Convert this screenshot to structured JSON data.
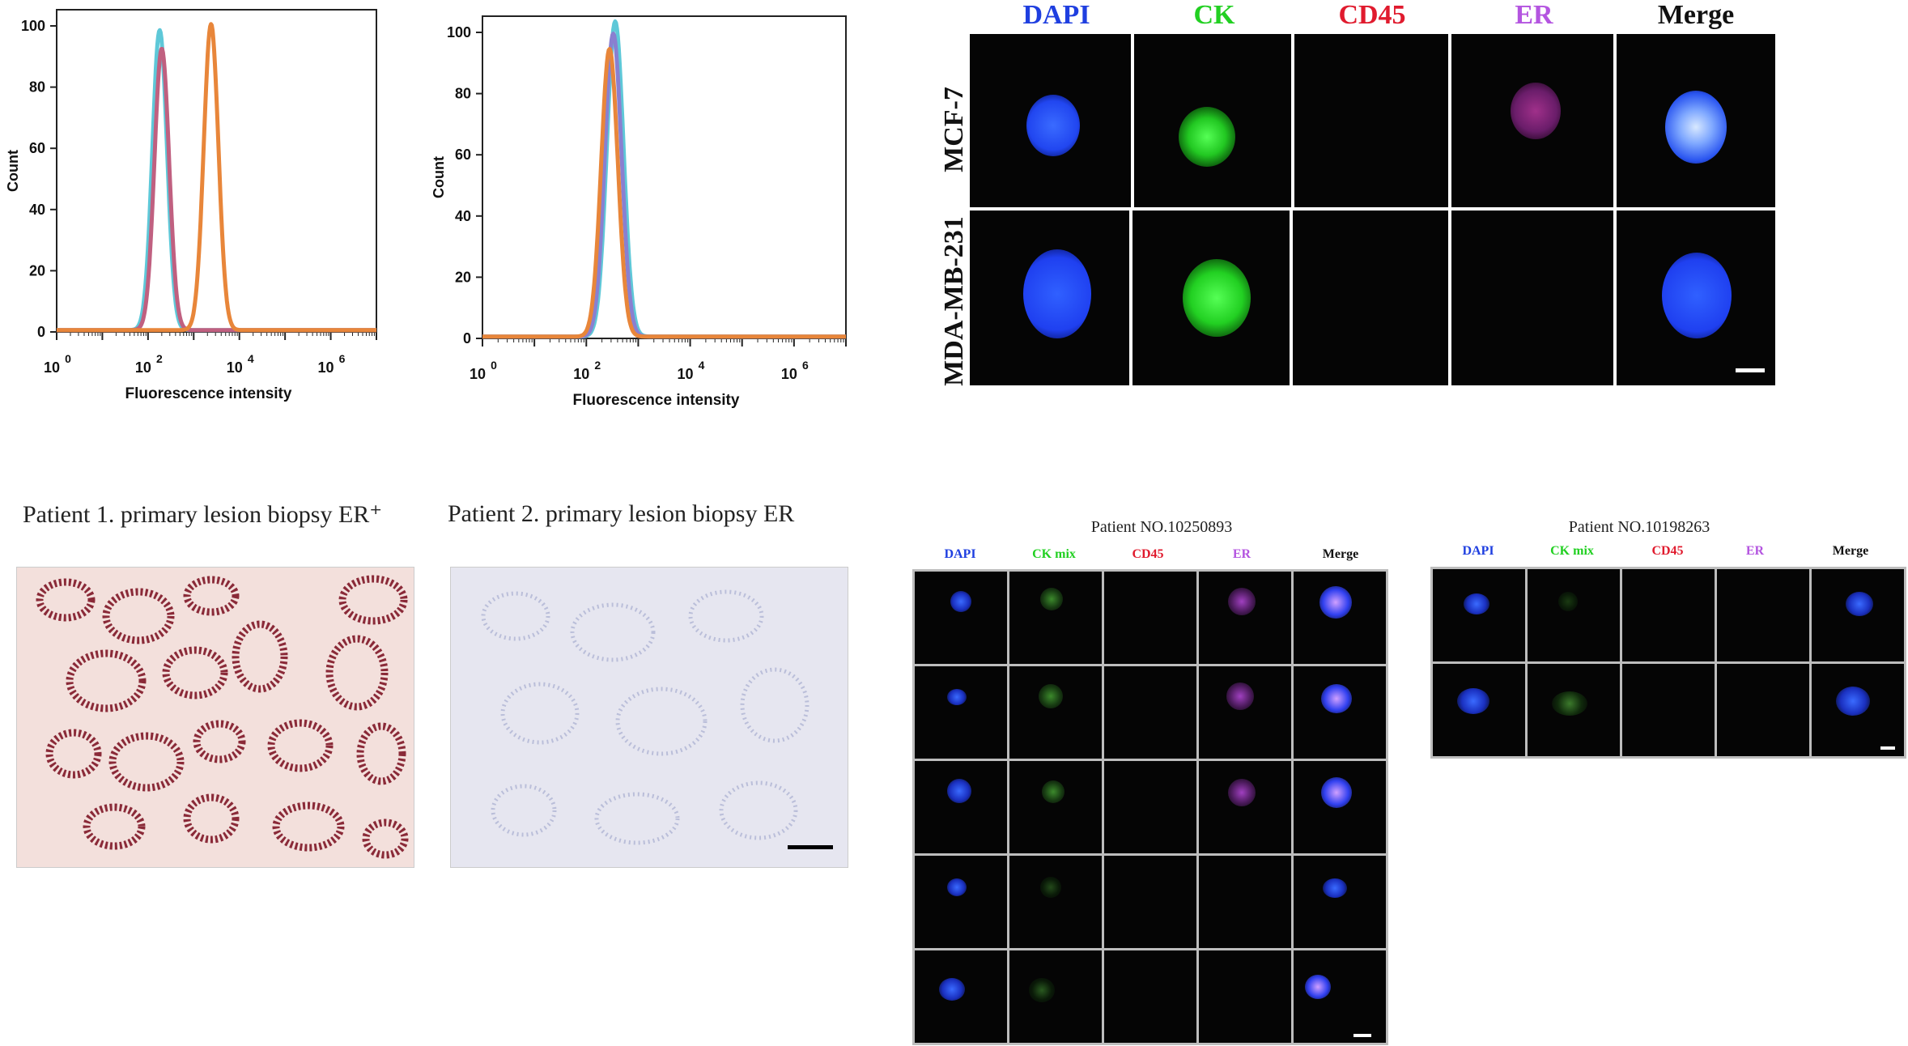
{
  "chart_data": [
    {
      "type": "line",
      "ylabel": "Count",
      "xlabel": "Fluorescence intensity",
      "x_scale": "log",
      "xlim": [
        1,
        10000000
      ],
      "ylim": [
        0,
        100
      ],
      "y_ticks": [
        "0",
        "20",
        "40",
        "60",
        "80",
        "100"
      ],
      "x_ticks": [
        "10",
        "10",
        "10",
        "10"
      ],
      "x_tick_exponents": [
        "0",
        "2",
        "4",
        "6"
      ],
      "series": [
        {
          "color": "#5ec8d8",
          "center": 180,
          "peak": 98
        },
        {
          "color": "#c06080",
          "center": 200,
          "peak": 92
        },
        {
          "color": "#e8863a",
          "center": 2400,
          "peak": 100
        }
      ]
    },
    {
      "type": "line",
      "ylabel": "Count",
      "xlabel": "Fluorescence intensity",
      "x_scale": "log",
      "xlim": [
        1,
        10000000
      ],
      "ylim": [
        0,
        100
      ],
      "y_ticks": [
        "0",
        "20",
        "40",
        "60",
        "80",
        "100"
      ],
      "x_ticks": [
        "10",
        "10",
        "10",
        "10"
      ],
      "x_tick_exponents": [
        "0",
        "2",
        "4",
        "6"
      ],
      "series": [
        {
          "color": "#5ec8d8",
          "center": 360,
          "peak": 103
        },
        {
          "color": "#8a7fd0",
          "center": 330,
          "peak": 99
        },
        {
          "color": "#e8863a",
          "center": 280,
          "peak": 94
        }
      ]
    }
  ],
  "panel_b": {
    "headers": [
      {
        "text": "DAPI",
        "color": "#1f3fe0"
      },
      {
        "text": "CK",
        "color": "#22d022"
      },
      {
        "text": "CD45",
        "color": "#e01b2e"
      },
      {
        "text": "ER",
        "color": "#b455e0"
      },
      {
        "text": "Merge",
        "color": "#111111"
      }
    ],
    "rows": [
      "MCF-7",
      "MDA-MB-231"
    ]
  },
  "panel_c": {
    "captions": [
      "Patient 1. primary lesion biopsy ER⁺",
      "Patient 2. primary lesion biopsy ER"
    ]
  },
  "panel_d": {
    "patients": [
      "Patient NO.10250893",
      "Patient NO.10198263"
    ],
    "headers": [
      {
        "text": "DAPI",
        "color": "#1f3fe0"
      },
      {
        "text": "CK mix",
        "color": "#22d022"
      },
      {
        "text": "CD45",
        "color": "#e01b2e"
      },
      {
        "text": "ER",
        "color": "#b455e0"
      },
      {
        "text": "Merge",
        "color": "#111111"
      }
    ]
  }
}
